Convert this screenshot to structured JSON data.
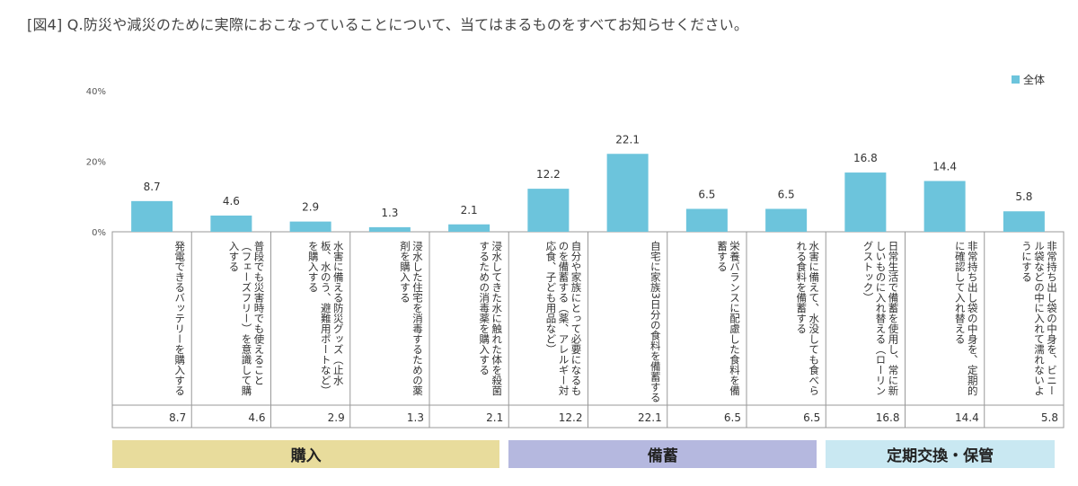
{
  "title": "[図4] Q.防災や減災のために実際におこなっていることについて、当てはまるものをすべてお知らせください。",
  "chart_data": {
    "type": "bar",
    "categories": [
      "発電できるバッテリーを購入する",
      "普段でも災害時でも使えること（フェーズフリー）を意識して購入する",
      "水害に備える防災グッズ（止水板、水のう、避難用ボートなど）を購入する",
      "浸水した住宅を消毒するための薬剤を購入する",
      "浸水してきた水に触れた体を殺菌するための消毒薬を購入する",
      "自分や家族にとって必要になるものを備蓄する（薬、アレルギー対応食、子ども用品など）",
      "自宅に家族3日分の食料を備蓄する",
      "栄養バランスに配慮した食料を備蓄する",
      "水害に備えて、水没しても食べられる食料を備蓄する",
      "日常生活で備蓄を使用し、常に新しいものに入れ替える（ローリングストック）",
      "非常持ち出し袋の中身を、定期的に確認して入れ替える",
      "非常持ち出し袋の中身を、ビニール袋などの中に入れて濡れないようにする"
    ],
    "series": [
      {
        "name": "全体",
        "values": [
          8.7,
          4.6,
          2.9,
          1.3,
          2.1,
          12.2,
          22.1,
          6.5,
          6.5,
          16.8,
          14.4,
          5.8
        ],
        "value_labels": [
          "8.7",
          "4.6",
          "2.9",
          "1.3",
          "2.1",
          "12.2",
          "22.1",
          "6.5",
          "6.5",
          "16.8",
          "14.4",
          "5.8"
        ]
      }
    ],
    "yticks": [
      "0%",
      "20%",
      "40%"
    ],
    "ylim": [
      0,
      40
    ],
    "legend": "top-right",
    "groups": [
      {
        "label": "購入",
        "from": 0,
        "to": 4,
        "color": "#e8dc9c"
      },
      {
        "label": "備蓄",
        "from": 5,
        "to": 8,
        "color": "#b5b8df"
      },
      {
        "label": "定期交換・保管",
        "from": 9,
        "to": 11,
        "color": "#c9e8f2"
      }
    ],
    "colors": {
      "bar": "#6cc4dc",
      "axis": "#999999",
      "grid": "#d9d9d9"
    }
  }
}
